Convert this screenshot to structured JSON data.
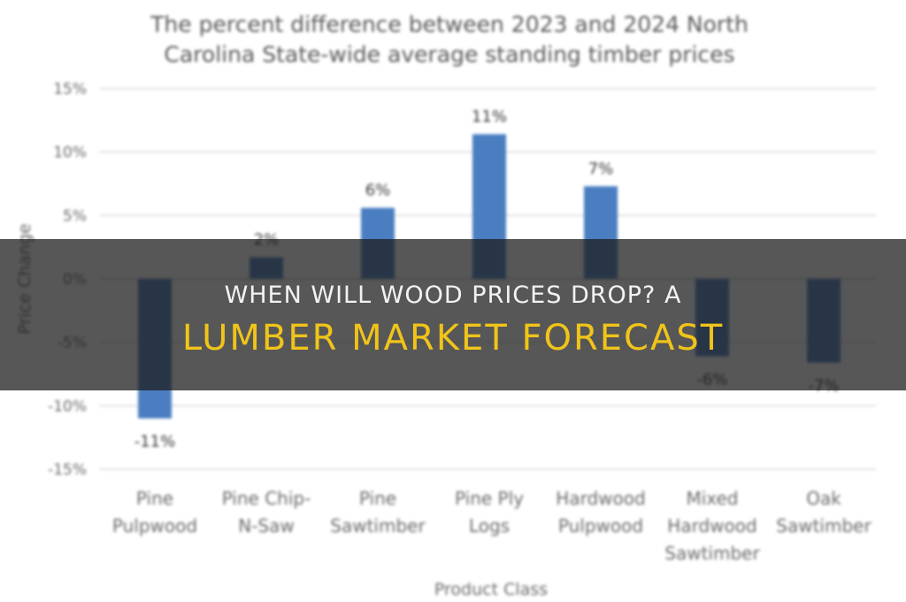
{
  "overlay": {
    "headline_line1": "WHEN WILL WOOD PRICES DROP? A",
    "headline_line2": "LUMBER MARKET FORECAST",
    "line1_color": "#f2f2f2",
    "line2_color": "#f0c419"
  },
  "chart_data": {
    "type": "bar",
    "title_lines": [
      "The percent difference between 2023 and 2024 North",
      "Carolina State-wide average standing timber prices"
    ],
    "xlabel": "Product Class",
    "ylabel": "Price Change",
    "ylim": [
      -15,
      15
    ],
    "yticks": [
      15,
      10,
      5,
      0,
      -5,
      -10,
      -15
    ],
    "ytick_labels": [
      "15%",
      "10%",
      "5%",
      "0%",
      "-5%",
      "-10%",
      "-15%"
    ],
    "grid": true,
    "bar_color": "#4a7ec1",
    "categories": [
      [
        "Pine",
        "Pulpwood"
      ],
      [
        "Pine Chip-",
        "N-Saw"
      ],
      [
        "Pine",
        "Sawtimber"
      ],
      [
        "Pine Ply",
        "Logs"
      ],
      [
        "Hardwood",
        "Pulpwood"
      ],
      [
        "Mixed",
        "Hardwood",
        "Sawtimber"
      ],
      [
        "Oak",
        "Sawtimber"
      ]
    ],
    "values": [
      -11,
      1.7,
      5.6,
      11.4,
      7.3,
      -6.1,
      -6.6
    ],
    "data_labels": [
      "-11%",
      "2%",
      "6%",
      "11%",
      "7%",
      "-6%",
      "-7%"
    ]
  }
}
